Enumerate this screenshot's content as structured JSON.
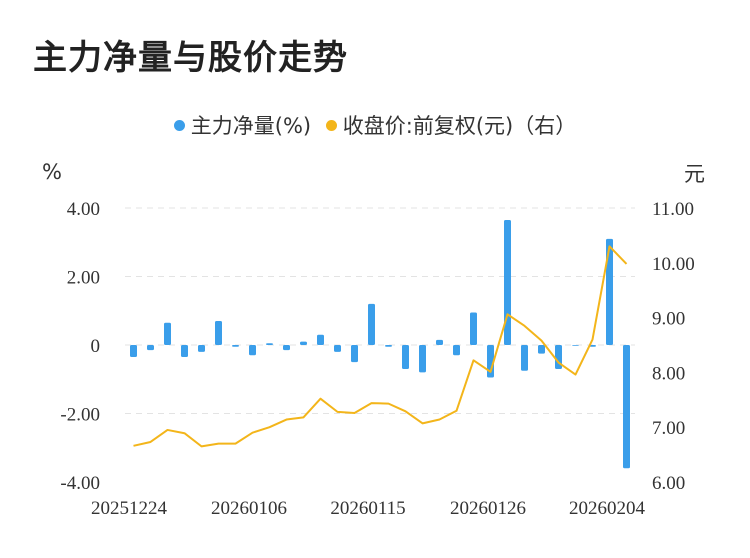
{
  "title": "主力净量与股价走势",
  "legend": {
    "series1": "主力净量(%)",
    "series2": "收盘价:前复权(元)（右）"
  },
  "units": {
    "left": "%",
    "right": "元"
  },
  "colors": {
    "bar": "#3a9eea",
    "line": "#f3b51a",
    "grid": "#e3e3e3"
  },
  "chart_data": {
    "type": "bar+line",
    "x_tick_labels": [
      "20251224",
      "20260106",
      "20260115",
      "20260126",
      "20260204"
    ],
    "left_axis": {
      "ticks": [
        "4.00",
        "2.00",
        "0",
        "-2.00",
        "-4.00"
      ],
      "ylim": [
        -4,
        4
      ]
    },
    "right_axis": {
      "ticks": [
        "11.00",
        "10.00",
        "9.00",
        "8.00",
        "7.00",
        "6.00"
      ],
      "ylim": [
        6,
        11
      ]
    },
    "series": [
      {
        "name": "主力净量(%)",
        "type": "bar",
        "axis": "left",
        "values": [
          -0.35,
          -0.15,
          0.65,
          -0.35,
          -0.2,
          0.7,
          -0.05,
          -0.3,
          0.05,
          -0.15,
          0.1,
          0.3,
          -0.2,
          -0.5,
          1.2,
          -0.05,
          -0.7,
          -0.8,
          0.15,
          -0.3,
          0.95,
          -0.95,
          3.65,
          -0.75,
          -0.25,
          -0.7,
          0.0,
          -0.05,
          3.1,
          -3.6
        ]
      },
      {
        "name": "收盘价:前复权(元)（右）",
        "type": "line",
        "axis": "right",
        "values": [
          6.66,
          6.73,
          6.95,
          6.89,
          6.65,
          6.7,
          6.7,
          6.9,
          7.0,
          7.14,
          7.18,
          7.52,
          7.28,
          7.26,
          7.44,
          7.43,
          7.29,
          7.07,
          7.14,
          7.3,
          8.22,
          8.01,
          9.06,
          8.85,
          8.58,
          8.18,
          7.96,
          8.6,
          10.3,
          9.98
        ]
      }
    ],
    "grid": true,
    "legend_position": "top"
  }
}
